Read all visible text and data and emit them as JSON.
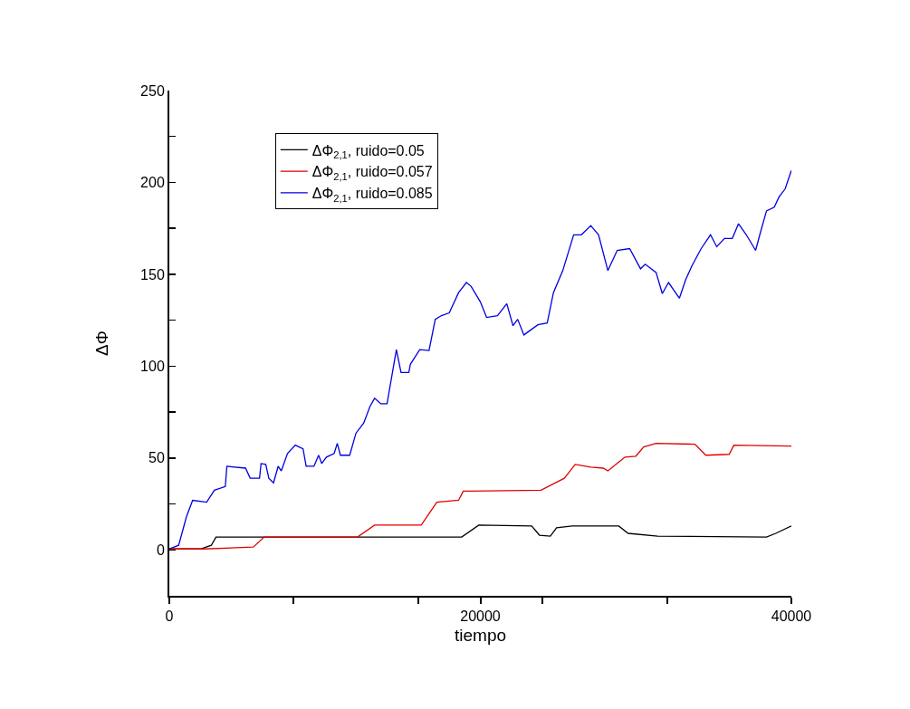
{
  "chart_data": {
    "type": "line",
    "xlabel": "tiempo",
    "ylabel": "ΔΦ",
    "xlim": [
      0,
      40000
    ],
    "ylim": [
      -25,
      250
    ],
    "xticks": [
      0,
      {
        "value": 8000,
        "label": null
      },
      {
        "value": 16000,
        "label": null
      },
      20000,
      {
        "value": 24000,
        "label": null
      },
      {
        "value": 32000,
        "label": null
      },
      40000
    ],
    "yticks": [
      {
        "value": -25,
        "label": null
      },
      0,
      {
        "value": 25,
        "label": null
      },
      50,
      {
        "value": 75,
        "label": null
      },
      100,
      {
        "value": 125,
        "label": null
      },
      150,
      {
        "value": 175,
        "label": null
      },
      200,
      {
        "value": 225,
        "label": null
      },
      250
    ],
    "grid": false,
    "legend": "top left",
    "marker": "none",
    "line_style": "solid",
    "series": [
      {
        "name": "ΔΦ$_{2,1}$, ruido=0.05",
        "color": "#000000",
        "x": [
          0,
          2000,
          2700,
          3000,
          18800,
          19900,
          23300,
          23800,
          24500,
          24900,
          25900,
          28900,
          29500,
          31400,
          38400,
          39000,
          40000
        ],
        "values": [
          0.5,
          0.5,
          2.5,
          7,
          7,
          13.5,
          13,
          8,
          7.5,
          12,
          13,
          13,
          9,
          7.5,
          7,
          9,
          13
        ]
      },
      {
        "name": "ΔΦ$_{2,1}$, ruido=0.057",
        "color": "#e00000",
        "x": [
          0,
          1700,
          2200,
          5400,
          6100,
          12100,
          13200,
          16200,
          17200,
          18600,
          18900,
          19400,
          23900,
          25400,
          26100,
          27100,
          27900,
          28200,
          29300,
          30000,
          30500,
          31300,
          33800,
          34500,
          36000,
          36300,
          40000
        ],
        "values": [
          0.5,
          0.5,
          0.5,
          1.5,
          7,
          7,
          13.5,
          13.5,
          26,
          27,
          32,
          32,
          32.5,
          39,
          46.5,
          45,
          44.5,
          43,
          50.5,
          51,
          56,
          58,
          57.5,
          51.5,
          52,
          57,
          56.5
        ]
      },
      {
        "name": "ΔΦ$_{2,1}$, ruido=0.085",
        "color": "#0000e0",
        "x": [
          0,
          600,
          1100,
          1500,
          2400,
          2900,
          3600,
          3700,
          4900,
          5200,
          5800,
          5900,
          6200,
          6400,
          6700,
          7000,
          7200,
          7600,
          8100,
          8600,
          8800,
          9300,
          9600,
          9800,
          10100,
          10600,
          10800,
          11000,
          11600,
          12000,
          12500,
          12900,
          13200,
          13600,
          14000,
          14600,
          14900,
          15400,
          15500,
          16100,
          16700,
          17100,
          17500,
          18000,
          18600,
          19100,
          19400,
          20000,
          20400,
          21100,
          21700,
          22100,
          22400,
          22800,
          23700,
          24300,
          24700,
          25300,
          26000,
          26500,
          27100,
          27600,
          28200,
          28800,
          29600,
          30300,
          30600,
          31300,
          31700,
          32100,
          32800,
          33200,
          33600,
          34200,
          34800,
          35200,
          35700,
          36200,
          36600,
          37100,
          37700,
          38000,
          38400,
          38900,
          39200,
          39600,
          40000
        ],
        "values": [
          0.5,
          2.5,
          18,
          27,
          26,
          32.5,
          34.5,
          45.5,
          44.5,
          39,
          39,
          47,
          46.5,
          39,
          36.5,
          45.5,
          43,
          52.5,
          57,
          55,
          45.5,
          45.5,
          51.5,
          47,
          50.5,
          52.5,
          58,
          51.5,
          51.5,
          63.5,
          69,
          78,
          82.5,
          79.5,
          79.5,
          109,
          96.5,
          96.5,
          101,
          109,
          108.5,
          125.5,
          127.5,
          129,
          140,
          145.5,
          143.5,
          135,
          126.5,
          127.5,
          134,
          122,
          125.5,
          117,
          122.5,
          123.5,
          140,
          152,
          171.5,
          171.5,
          176.5,
          171.5,
          152,
          163,
          164,
          153,
          155.5,
          151,
          139.5,
          145.5,
          137,
          147,
          154.5,
          164,
          171.5,
          165,
          169.5,
          169.5,
          177.5,
          171.5,
          163,
          172.5,
          184.5,
          186.5,
          192,
          196.5,
          206.5
        ]
      }
    ]
  }
}
